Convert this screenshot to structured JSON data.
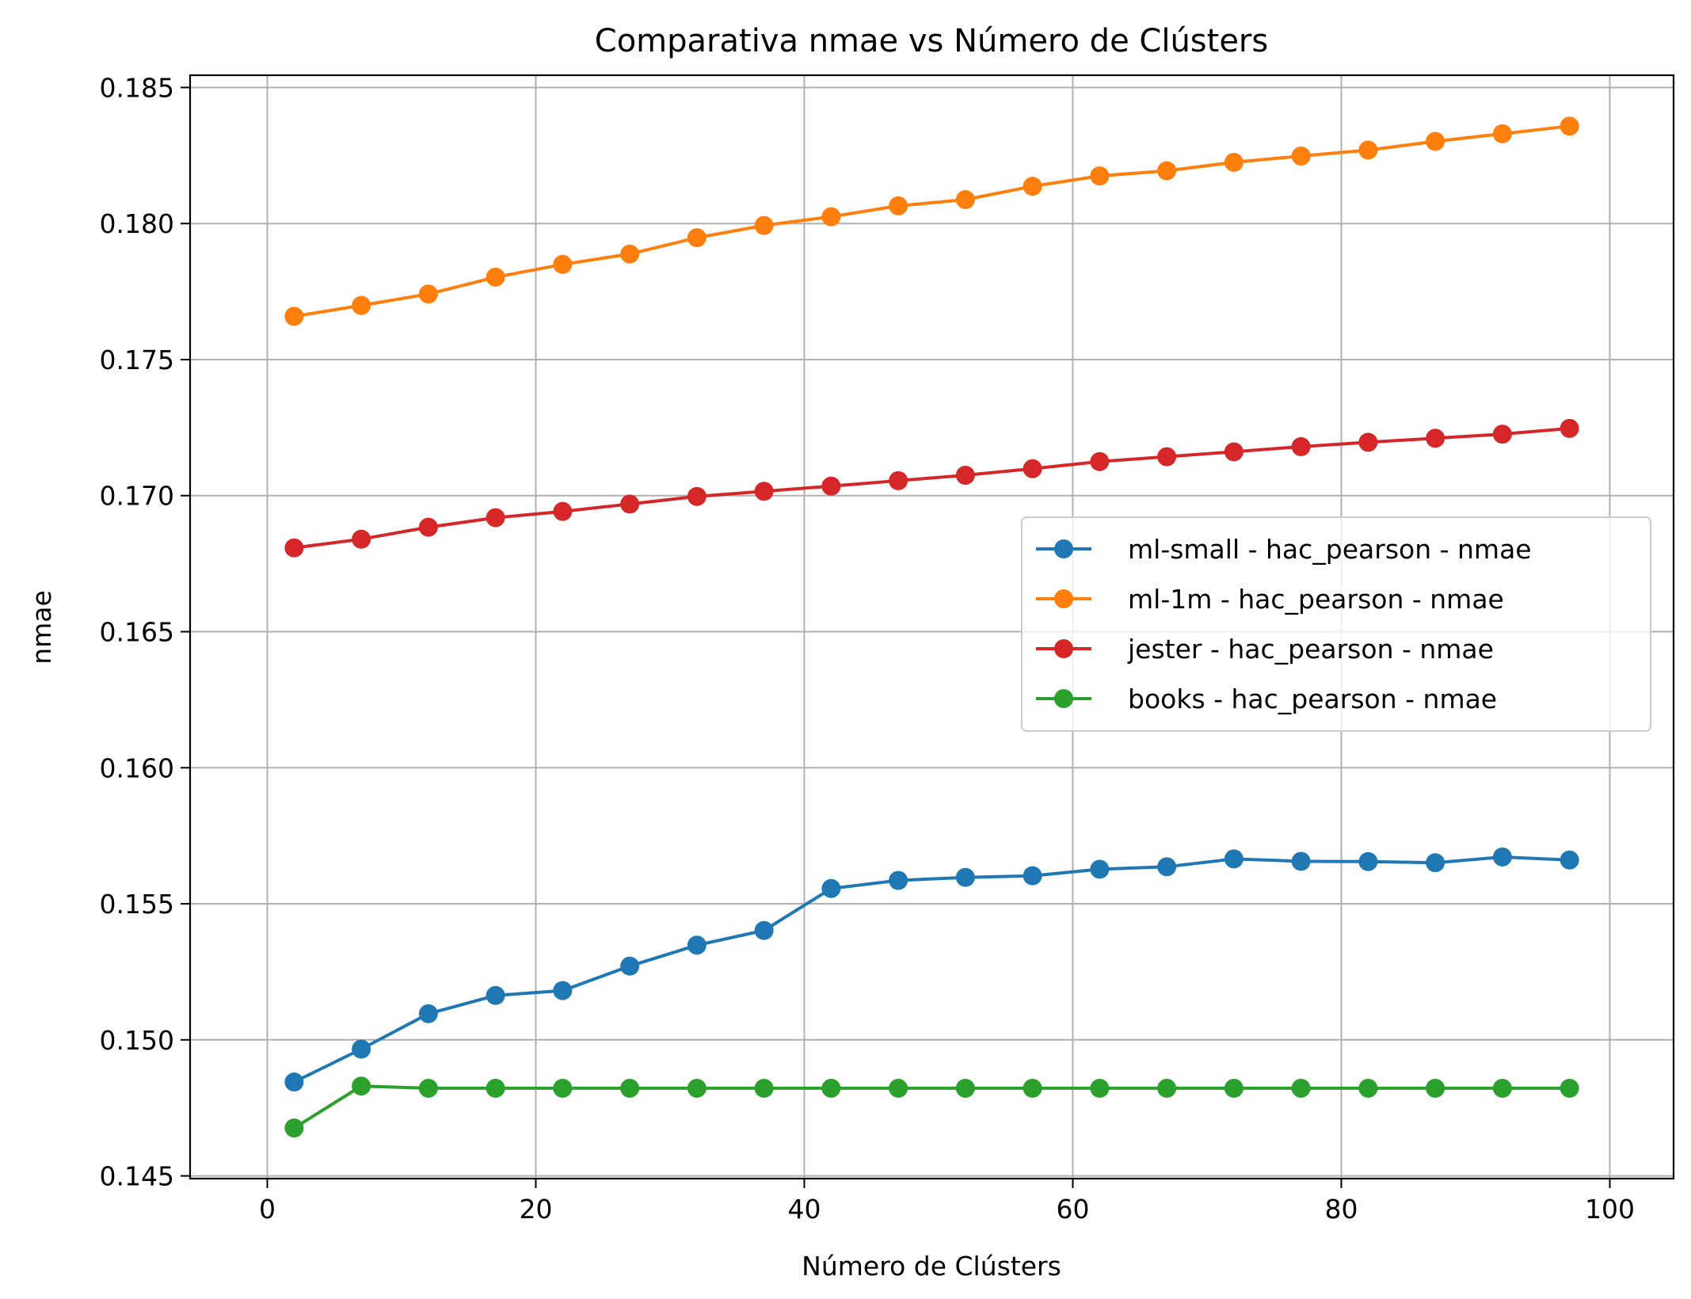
{
  "chart_data": {
    "type": "line",
    "title": "Comparativa nmae vs Número de Clústers",
    "xlabel": "Número de Clústers",
    "ylabel": "nmae",
    "xlim": [
      -5.75,
      104.75
    ],
    "ylim": [
      0.1449,
      0.18545
    ],
    "xticks": [
      "0",
      "20",
      "40",
      "60",
      "80",
      "100"
    ],
    "yticks": [
      "0.145",
      "0.150",
      "0.155",
      "0.160",
      "0.165",
      "0.170",
      "0.175",
      "0.180",
      "0.185"
    ],
    "grid": true,
    "legend_position": "center-right",
    "x": [
      2,
      7,
      12,
      17,
      22,
      27,
      32,
      37,
      42,
      47,
      52,
      57,
      62,
      67,
      72,
      77,
      82,
      87,
      92,
      97
    ],
    "series": [
      {
        "name": "ml-small - hac_pearson - nmae",
        "color": "#1f77b4",
        "values": [
          0.14845,
          0.14966,
          0.15096,
          0.15163,
          0.15181,
          0.15271,
          0.15348,
          0.15402,
          0.15556,
          0.15586,
          0.15597,
          0.15603,
          0.15627,
          0.15636,
          0.15665,
          0.15656,
          0.15655,
          0.15651,
          0.15672,
          0.15661
        ]
      },
      {
        "name": "ml-1m - hac_pearson - nmae",
        "color": "#ff7f0e",
        "values": [
          0.17659,
          0.17699,
          0.17741,
          0.17803,
          0.1785,
          0.17888,
          0.17948,
          0.17993,
          0.18025,
          0.18065,
          0.18088,
          0.18137,
          0.18175,
          0.18194,
          0.18225,
          0.18248,
          0.1827,
          0.18302,
          0.1833,
          0.18358
        ]
      },
      {
        "name": "jester - hac_pearson - nmae",
        "color": "#d62728",
        "values": [
          0.16808,
          0.1684,
          0.16884,
          0.16919,
          0.16942,
          0.16969,
          0.16997,
          0.17016,
          0.17035,
          0.17055,
          0.17075,
          0.17099,
          0.17125,
          0.17143,
          0.17161,
          0.1718,
          0.17196,
          0.17211,
          0.17226,
          0.17247
        ]
      },
      {
        "name": "books - hac_pearson - nmae",
        "color": "#2ca02c",
        "values": [
          0.14676,
          0.1483,
          0.14822,
          0.14822,
          0.14822,
          0.14822,
          0.14822,
          0.14822,
          0.14822,
          0.14822,
          0.14822,
          0.14822,
          0.14822,
          0.14822,
          0.14822,
          0.14822,
          0.14822,
          0.14822,
          0.14822,
          0.14822
        ]
      }
    ]
  }
}
